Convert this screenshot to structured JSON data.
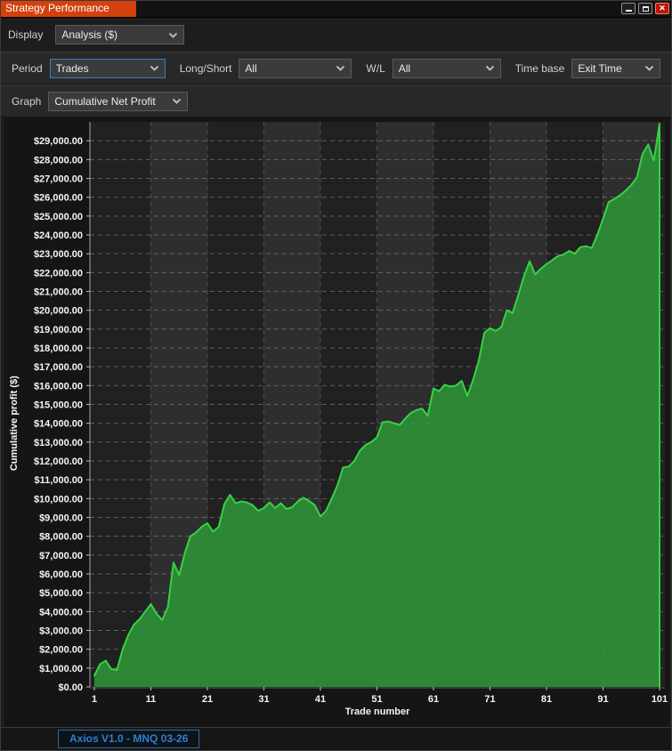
{
  "window": {
    "title": "Strategy Performance"
  },
  "toolbar": {
    "display": {
      "label": "Display",
      "value": "Analysis ($)"
    },
    "period": {
      "label": "Period",
      "value": "Trades"
    },
    "long_short": {
      "label": "Long/Short",
      "value": "All"
    },
    "wl": {
      "label": "W/L",
      "value": "All"
    },
    "time_base": {
      "label": "Time base",
      "value": "Exit Time"
    },
    "graph": {
      "label": "Graph",
      "value": "Cumulative Net Profit"
    }
  },
  "chart_data": {
    "type": "area",
    "title": "",
    "xlabel": "Trade number",
    "ylabel": "Cumulative profit ($)",
    "x_ticks": [
      1,
      11,
      21,
      31,
      41,
      51,
      61,
      71,
      81,
      91,
      101
    ],
    "y_tick_step": 1000,
    "y_tick_max": 29000,
    "ylim": [
      0,
      30000
    ],
    "xlim": [
      1,
      101
    ],
    "grid": "dashed",
    "legend": "none",
    "x": [
      1,
      2,
      3,
      4,
      5,
      6,
      7,
      8,
      9,
      10,
      11,
      12,
      13,
      14,
      15,
      16,
      17,
      18,
      19,
      20,
      21,
      22,
      23,
      24,
      25,
      26,
      27,
      28,
      29,
      30,
      31,
      32,
      33,
      34,
      35,
      36,
      37,
      38,
      39,
      40,
      41,
      42,
      43,
      44,
      45,
      46,
      47,
      48,
      49,
      50,
      51,
      52,
      53,
      54,
      55,
      56,
      57,
      58,
      59,
      60,
      61,
      62,
      63,
      64,
      65,
      66,
      67,
      68,
      69,
      70,
      71,
      72,
      73,
      74,
      75,
      76,
      77,
      78,
      79,
      80,
      81,
      82,
      83,
      84,
      85,
      86,
      87,
      88,
      89,
      90,
      91,
      92,
      93,
      94,
      95,
      96,
      97,
      98,
      99,
      100,
      101
    ],
    "values": [
      600,
      1200,
      1400,
      950,
      900,
      2000,
      2750,
      3300,
      3600,
      4000,
      4400,
      3900,
      3550,
      4250,
      6600,
      5950,
      7100,
      8000,
      8200,
      8500,
      8700,
      8250,
      8500,
      9700,
      10200,
      9750,
      9850,
      9800,
      9650,
      9350,
      9500,
      9800,
      9500,
      9750,
      9450,
      9550,
      9850,
      10050,
      9870,
      9650,
      9050,
      9350,
      10000,
      10700,
      11650,
      11700,
      12000,
      12550,
      12850,
      13000,
      13250,
      14050,
      14100,
      14000,
      13900,
      14250,
      14550,
      14700,
      14780,
      14400,
      15850,
      15700,
      16050,
      15950,
      16000,
      16250,
      15450,
      16300,
      17300,
      18800,
      19050,
      18900,
      19100,
      20000,
      19850,
      20800,
      21800,
      22600,
      21900,
      22200,
      22450,
      22650,
      22880,
      22950,
      23150,
      23000,
      23350,
      23400,
      23300,
      24000,
      24850,
      25750,
      25900,
      26100,
      26350,
      26650,
      27050,
      28300,
      28800,
      27950,
      29900
    ],
    "line_color": "#36d243",
    "fill_color": "#2e9138",
    "plot_bg_dark": "#212121",
    "plot_bg_light": "#2e2e2e",
    "grid_color": "#9a9a9a",
    "tick_text_color": "#f5f5f5"
  },
  "bottom_tabs": [
    {
      "label": "Axios V1.0 - MNQ 03-26",
      "active": true
    }
  ],
  "colors": {
    "title_tab_bg": "#d2410e",
    "close_button_bg": "#c01508",
    "focused_dropdown_border": "#3d7ebf",
    "bottom_tab_text": "#2f7fd0",
    "bottom_tab_border": "#2d6da5"
  }
}
